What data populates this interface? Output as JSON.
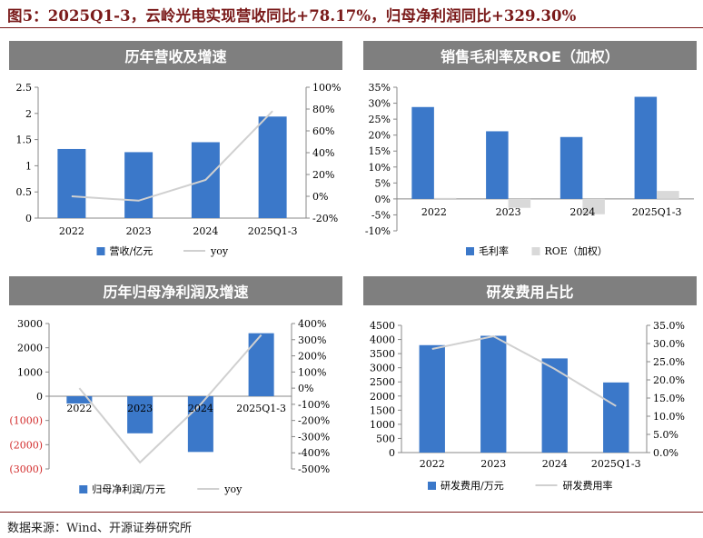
{
  "figure_title": "图5：2025Q1-3，云岭光电实现营收同比+78.17%，归母净利润同比+329.30%",
  "source": "数据来源：Wind、开源证券研究所",
  "colors": {
    "bar": "#3b78c9",
    "line": "#d0d0d0",
    "roe_bar": "#d9d9d9",
    "negative_label": "#d22a2a",
    "title": "#7a1a1a",
    "header": "#7f7f7f"
  },
  "chart_data": [
    {
      "id": "revenue",
      "type": "bar",
      "title": "历年营收及增速",
      "categories": [
        "2022",
        "2023",
        "2024",
        "2025Q1-3"
      ],
      "series": [
        {
          "name": "营收/亿元",
          "type": "bar",
          "axis": "left",
          "values": [
            1.32,
            1.26,
            1.45,
            1.94
          ]
        },
        {
          "name": "yoy",
          "type": "line",
          "axis": "right",
          "values": [
            0.0,
            -4.0,
            15.0,
            78.17
          ]
        }
      ],
      "ylim": [
        0,
        2.5
      ],
      "yticks": [
        "0",
        "0.5",
        "1",
        "1.5",
        "2",
        "2.5"
      ],
      "y2lim": [
        -20,
        100
      ],
      "y2ticks": [
        "-20%",
        "0%",
        "20%",
        "40%",
        "60%",
        "80%",
        "100%"
      ],
      "legend": "bottom"
    },
    {
      "id": "margin",
      "type": "bar",
      "title": "销售毛利率及ROE（加权）",
      "categories": [
        "2022",
        "2023",
        "2024",
        "2025Q1-3"
      ],
      "series": [
        {
          "name": "毛利率",
          "type": "bar",
          "values": [
            28.8,
            21.2,
            19.4,
            32.0
          ]
        },
        {
          "name": "ROE（加权）",
          "type": "bar",
          "values": [
            0.3,
            -2.8,
            -4.8,
            2.5
          ]
        }
      ],
      "ylim": [
        -10,
        35
      ],
      "yticks": [
        "-10%",
        "-5%",
        "0%",
        "5%",
        "10%",
        "15%",
        "20%",
        "25%",
        "30%",
        "35%"
      ],
      "legend": "bottom"
    },
    {
      "id": "profit",
      "type": "bar",
      "title": "历年归母净利润及增速",
      "categories": [
        "2022",
        "2023",
        "2024",
        "2025Q1-3"
      ],
      "series": [
        {
          "name": "归母净利润/万元",
          "type": "bar",
          "axis": "left",
          "values": [
            -300,
            -1530,
            -2300,
            2600
          ]
        },
        {
          "name": "yoy",
          "type": "line",
          "axis": "right",
          "values": [
            0,
            -460,
            -100,
            329.3
          ]
        }
      ],
      "ylim": [
        -3000,
        3000
      ],
      "yticks": [
        "(3000)",
        "(2000)",
        "(1000)",
        "0",
        "1000",
        "2000",
        "3000"
      ],
      "y2lim": [
        -500,
        400
      ],
      "y2ticks": [
        "-500%",
        "-400%",
        "-300%",
        "-200%",
        "-100%",
        "0%",
        "100%",
        "200%",
        "300%",
        "400%"
      ],
      "legend": "bottom"
    },
    {
      "id": "rd",
      "type": "bar",
      "title": "研发费用占比",
      "categories": [
        "2022",
        "2023",
        "2024",
        "2025Q1-3"
      ],
      "series": [
        {
          "name": "研发费用/万元",
          "type": "bar",
          "axis": "left",
          "values": [
            3800,
            4130,
            3330,
            2480
          ]
        },
        {
          "name": "研发费用率",
          "type": "line",
          "axis": "right",
          "values": [
            28.5,
            32.0,
            23.0,
            12.8
          ]
        }
      ],
      "ylim": [
        0,
        4500
      ],
      "yticks": [
        "0",
        "500",
        "1000",
        "1500",
        "2000",
        "2500",
        "3000",
        "3500",
        "4000",
        "4500"
      ],
      "y2lim": [
        0,
        35
      ],
      "y2ticks": [
        "0.0%",
        "5.0%",
        "10.0%",
        "15.0%",
        "20.0%",
        "25.0%",
        "30.0%",
        "35.0%"
      ],
      "legend": "bottom"
    }
  ]
}
